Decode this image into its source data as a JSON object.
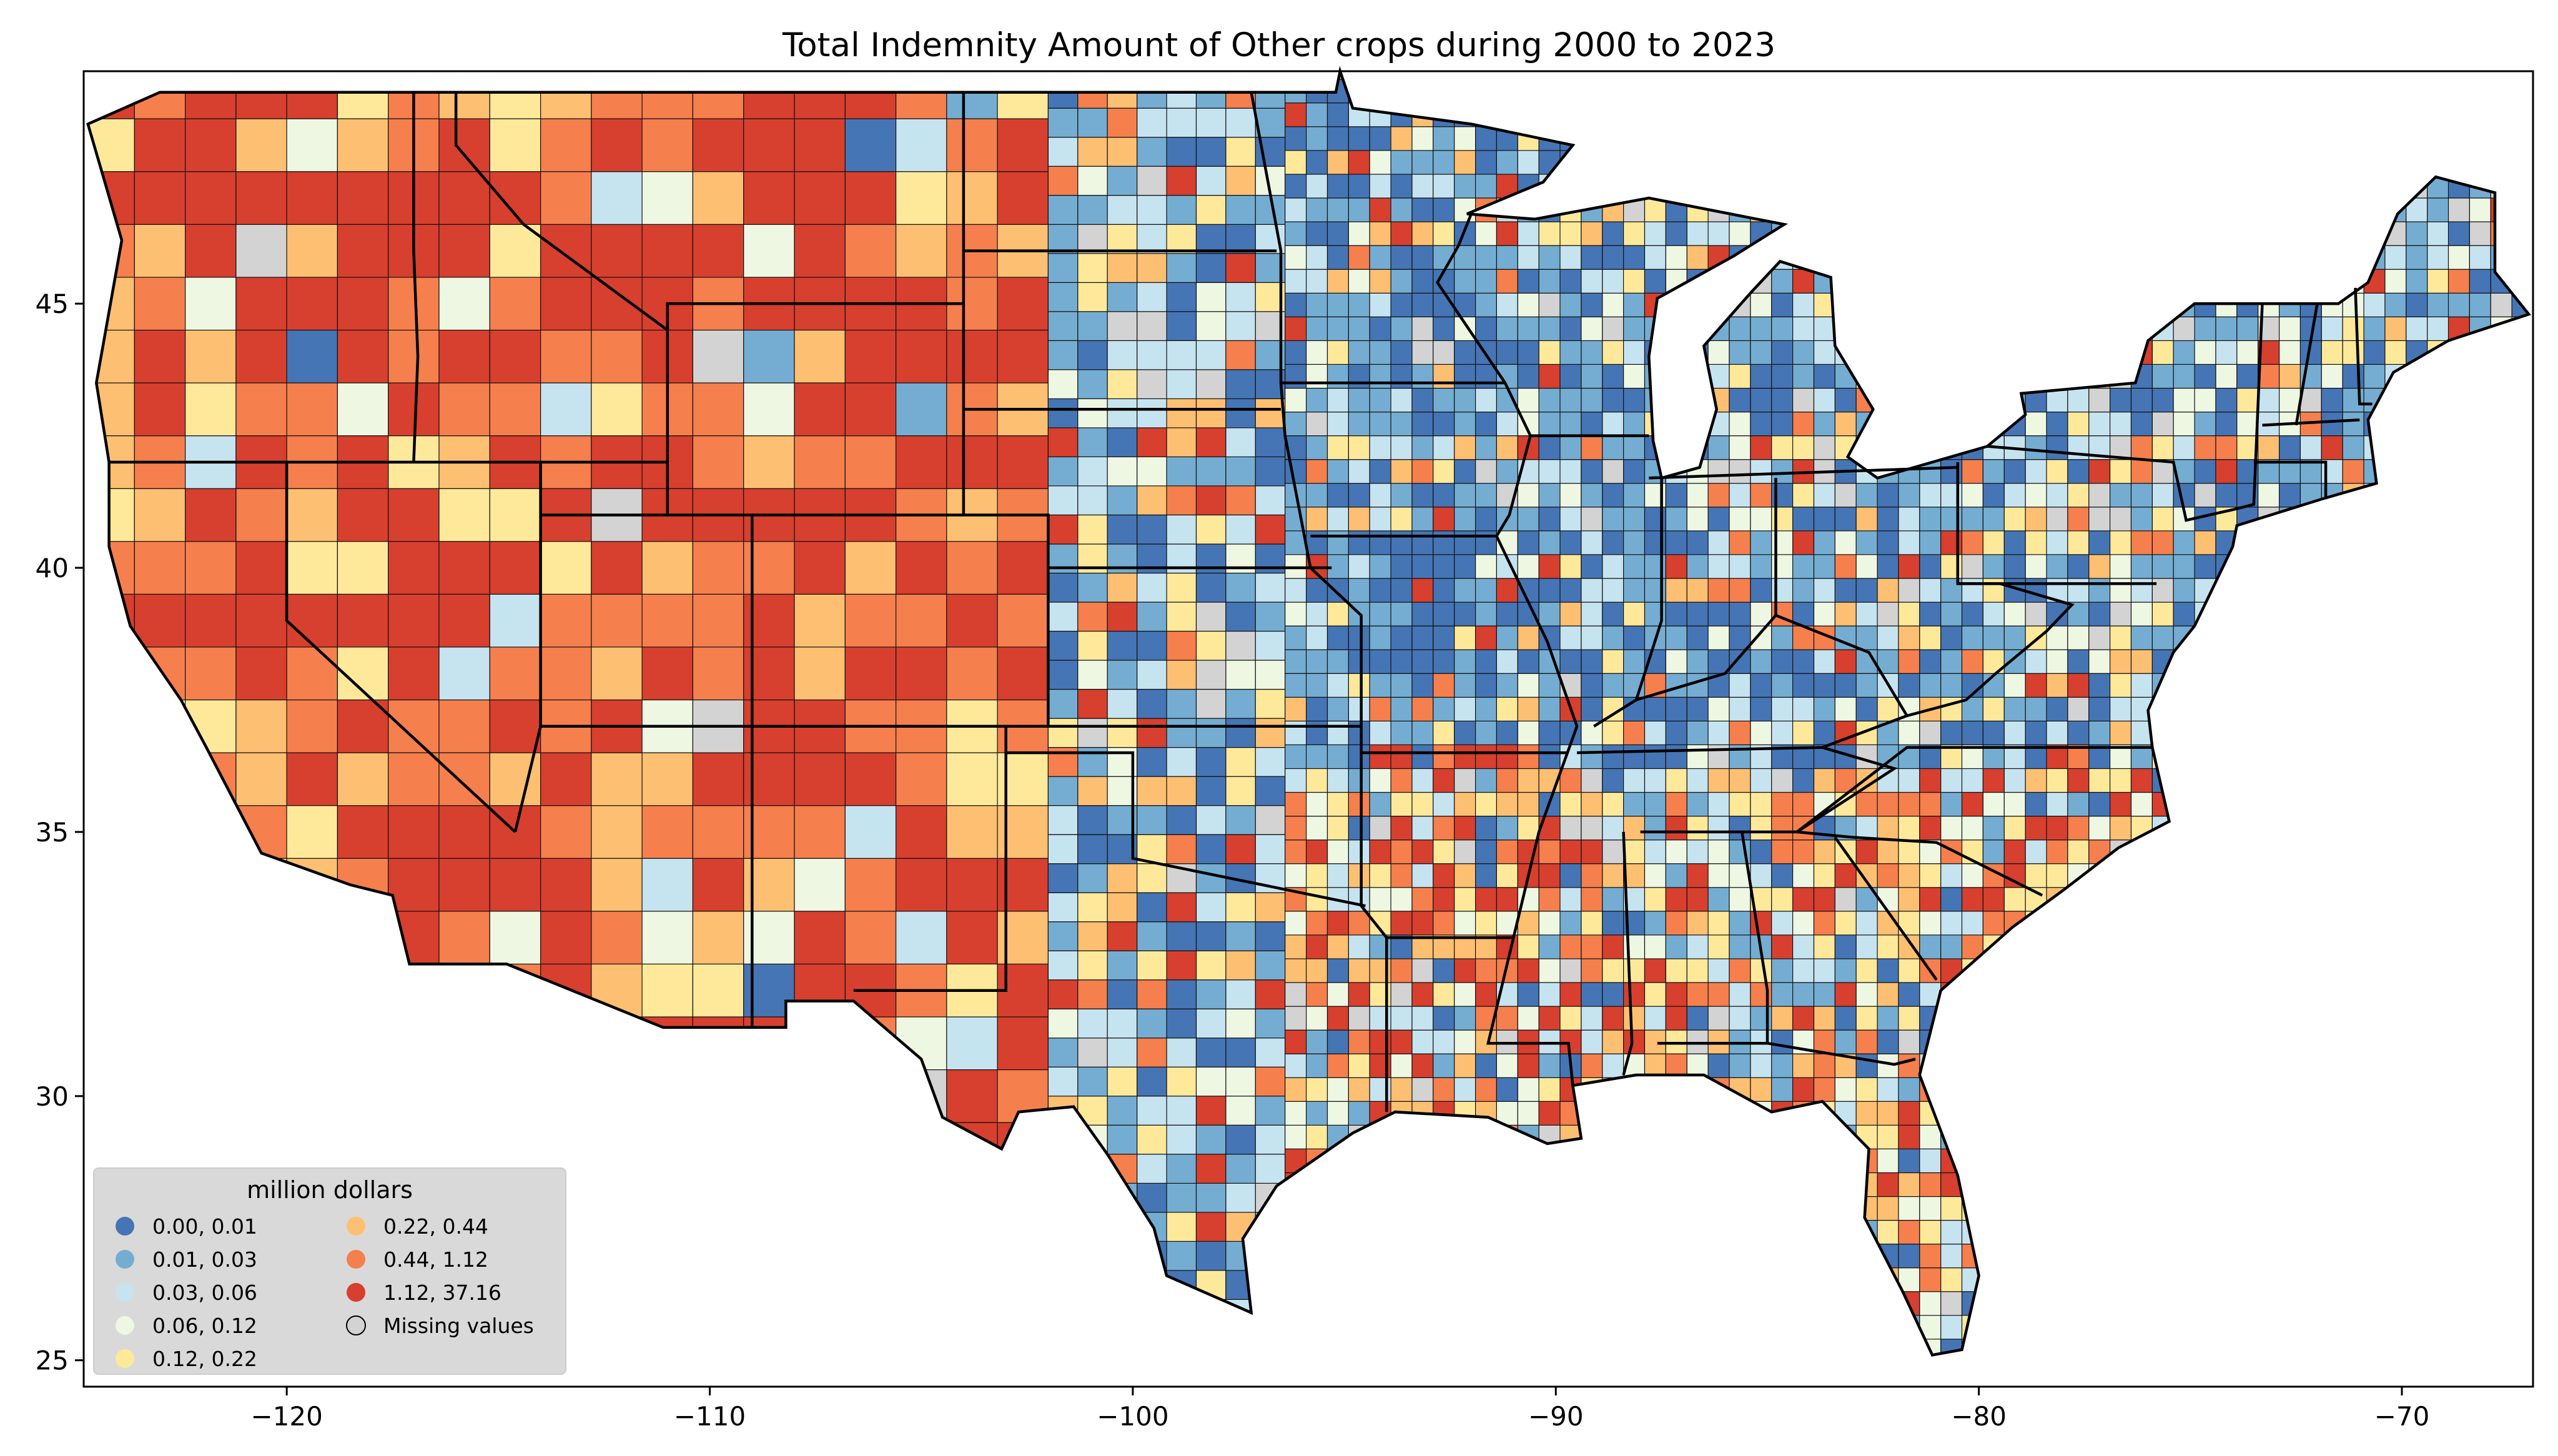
{
  "title": "Total Indemnity Amount of Other crops during 2000 to 2023",
  "x_axis": {
    "ticks": [
      {
        "value": -120,
        "label": "−120"
      },
      {
        "value": -110,
        "label": "−110"
      },
      {
        "value": -100,
        "label": "−100"
      },
      {
        "value": -90,
        "label": "−90"
      },
      {
        "value": -80,
        "label": "−80"
      },
      {
        "value": -70,
        "label": "−70"
      }
    ],
    "range": [
      -124.8,
      -66.9
    ]
  },
  "y_axis": {
    "ticks": [
      {
        "value": 25,
        "label": "25"
      },
      {
        "value": 30,
        "label": "30"
      },
      {
        "value": 35,
        "label": "35"
      },
      {
        "value": 40,
        "label": "40"
      },
      {
        "value": 45,
        "label": "45"
      }
    ],
    "range": [
      24.5,
      49.4
    ]
  },
  "legend": {
    "title": "million dollars",
    "items": [
      {
        "label": "0.00,  0.01",
        "color": "#4575b4"
      },
      {
        "label": "0.01,  0.03",
        "color": "#74add1"
      },
      {
        "label": "0.03,  0.06",
        "color": "#c6e3f0"
      },
      {
        "label": "0.06,  0.12",
        "color": "#eef7e2"
      },
      {
        "label": "0.12,  0.22",
        "color": "#fee99a"
      },
      {
        "label": "0.22,  0.44",
        "color": "#fdbf71"
      },
      {
        "label": "0.44,  1.12",
        "color": "#f57f4d"
      },
      {
        "label": "1.12, 37.16",
        "color": "#d73f2e"
      },
      {
        "label": "Missing values",
        "color": "#d3d3d3"
      }
    ]
  },
  "colors": {
    "missing": "#d3d3d3",
    "legend_background": "#d9d9d9",
    "county_border": "#111111",
    "state_border": "#000000"
  }
}
